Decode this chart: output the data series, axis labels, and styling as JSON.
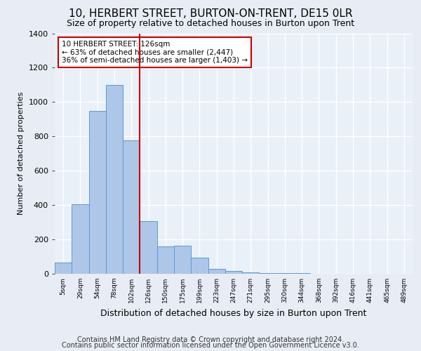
{
  "title1": "10, HERBERT STREET, BURTON-ON-TRENT, DE15 0LR",
  "title2": "Size of property relative to detached houses in Burton upon Trent",
  "xlabel": "Distribution of detached houses by size in Burton upon Trent",
  "ylabel": "Number of detached properties",
  "footer1": "Contains HM Land Registry data © Crown copyright and database right 2024.",
  "footer2": "Contains public sector information licensed under the Open Government Licence v3.0.",
  "bin_labels": [
    "5sqm",
    "29sqm",
    "54sqm",
    "78sqm",
    "102sqm",
    "126sqm",
    "150sqm",
    "175sqm",
    "199sqm",
    "223sqm",
    "247sqm",
    "271sqm",
    "295sqm",
    "320sqm",
    "344sqm",
    "368sqm",
    "392sqm",
    "416sqm",
    "441sqm",
    "465sqm",
    "489sqm"
  ],
  "bar_values": [
    65,
    405,
    950,
    1100,
    775,
    305,
    160,
    165,
    95,
    30,
    15,
    8,
    5,
    4,
    3,
    2,
    1,
    1,
    1,
    1,
    1
  ],
  "bar_color": "#aec6e8",
  "bar_edge_color": "#5b9bd5",
  "vline_index": 5,
  "vline_color": "#cc0000",
  "annotation_text": "10 HERBERT STREET: 126sqm\n← 63% of detached houses are smaller (2,447)\n36% of semi-detached houses are larger (1,403) →",
  "annotation_box_color": "#ffffff",
  "annotation_box_edge": "#cc0000",
  "ylim": [
    0,
    1400
  ],
  "yticks": [
    0,
    200,
    400,
    600,
    800,
    1000,
    1200,
    1400
  ],
  "background_color": "#e8edf5",
  "plot_bg_color": "#eaf0f8",
  "grid_color": "#ffffff",
  "title1_fontsize": 11,
  "title2_fontsize": 9,
  "xlabel_fontsize": 9,
  "ylabel_fontsize": 8,
  "footer_fontsize": 7
}
